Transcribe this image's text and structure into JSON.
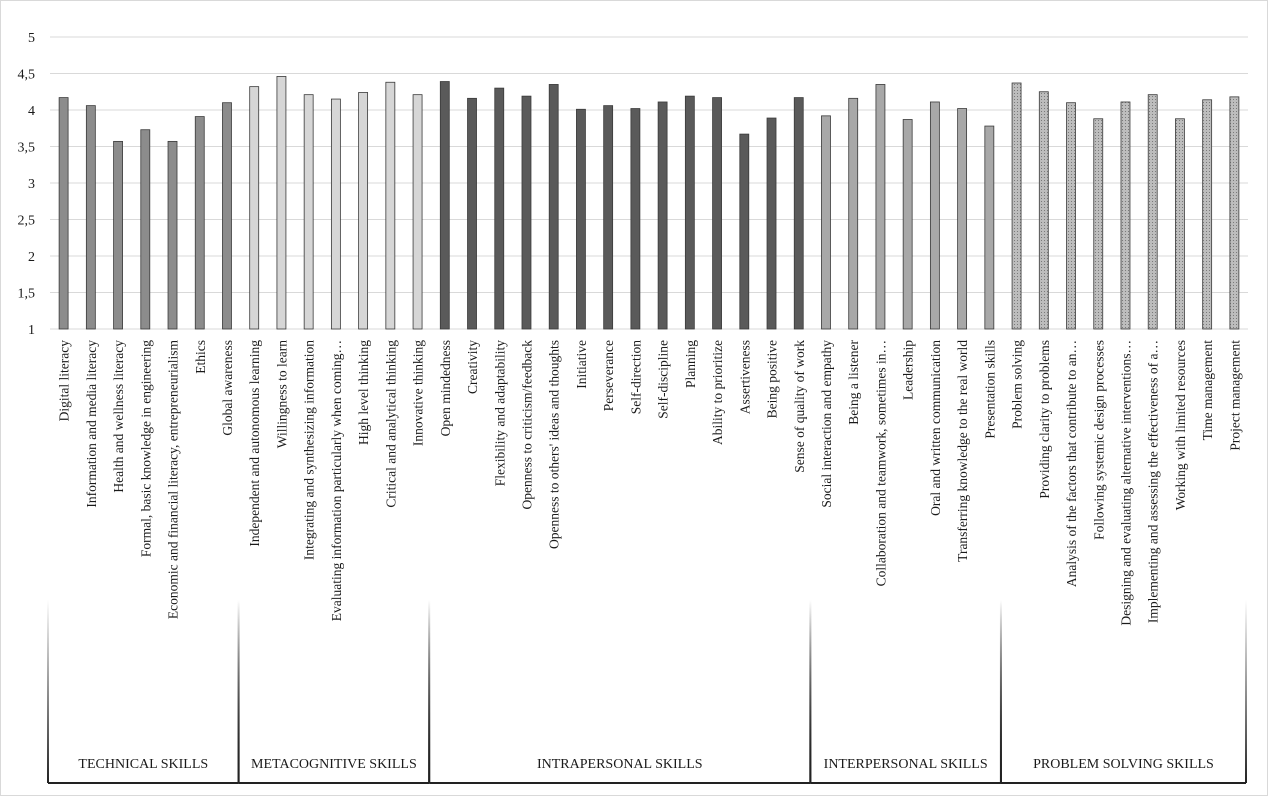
{
  "chart_data": {
    "type": "bar",
    "title": "",
    "xlabel": "",
    "ylabel": "",
    "ylim": [
      1,
      5
    ],
    "yticks": [
      "1",
      "1,5",
      "2",
      "2,5",
      "3",
      "3,5",
      "4",
      "4,5",
      "5"
    ],
    "grid": true,
    "legend": "none",
    "categories": [
      "Digital literacy",
      "Information and media literacy",
      "Health and wellness literacy",
      "Formal, basic knowledge in engineering",
      "Economic and financial literacy, entrepreneurialism",
      "Ethics",
      "Global awareness",
      "Independent and autonomous learning",
      "Willingness to learn",
      "Integrating and synthesizing information",
      "Evaluating information particularly when coming…",
      "High level thinking",
      "Critical and analytical thinking",
      "Innovative thinking",
      "Open mindedness",
      "Creativity",
      "Flexibility and adaptability",
      "Openness to criticism/feedback",
      "Openness to others' ideas and thoughts",
      "Initiative",
      "Perseverance",
      "Self-direction",
      "Self-discipline",
      "Planning",
      "Ability to prioritize",
      "Assertiveness",
      "Being positive",
      "Sense of quality of work",
      "Social interaction and empathy",
      "Being a listener",
      "Collaboration and teamwork, sometimes in…",
      "Leadership",
      "Oral and written communication",
      "Transferring knowledge to the real world",
      "Presentation skills",
      "Problem solving",
      "Providing clarity to problems",
      "Analysis of the factors that contribute to an…",
      "Following systemic design processes",
      "Designing and evaluating alternative interventions…",
      "Implementing and assessing the effectiveness of a…",
      "Working with limited resources",
      "Time management",
      "Project management"
    ],
    "values": [
      4.17,
      4.06,
      3.57,
      3.73,
      3.57,
      3.91,
      4.1,
      4.32,
      4.46,
      4.21,
      4.15,
      4.24,
      4.38,
      4.21,
      4.39,
      4.16,
      4.3,
      4.19,
      4.35,
      4.01,
      4.06,
      4.02,
      4.11,
      4.19,
      4.17,
      3.67,
      3.89,
      4.17,
      3.92,
      4.16,
      4.35,
      3.87,
      4.11,
      4.02,
      3.78,
      4.37,
      4.25,
      4.1,
      3.88,
      4.11,
      4.21,
      3.88,
      4.14,
      4.18
    ],
    "groups": [
      {
        "label": "TECHNICAL SKILLS",
        "start": 0,
        "end": 6,
        "color": "#8c8c8c"
      },
      {
        "label": "METACOGNITIVE SKILLS",
        "start": 7,
        "end": 13,
        "color": "#d6d6d6"
      },
      {
        "label": "INTRAPERSONAL SKILLS",
        "start": 14,
        "end": 27,
        "color": "#5a5a5a"
      },
      {
        "label": "INTERPERSONAL SKILLS",
        "start": 28,
        "end": 34,
        "color": "#a8a8a8"
      },
      {
        "label": "PROBLEM SOLVING SKILLS",
        "start": 35,
        "end": 43,
        "color": "#b4b4b4"
      }
    ]
  }
}
